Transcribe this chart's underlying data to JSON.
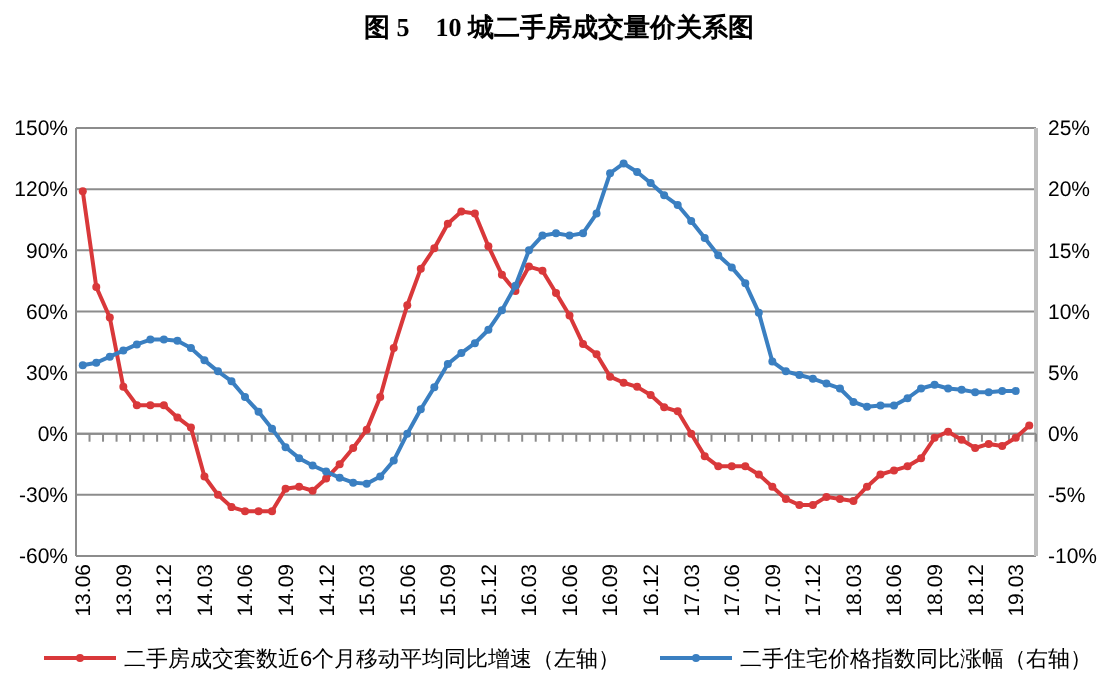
{
  "chart_data": {
    "type": "line",
    "title": "图 5　10 城二手房成交量价关系图",
    "categories": [
      "13.06",
      null,
      null,
      "13.09",
      null,
      null,
      "13.12",
      null,
      null,
      "14.03",
      null,
      null,
      "14.06",
      null,
      null,
      "14.09",
      null,
      null,
      "14.12",
      null,
      null,
      "15.03",
      null,
      null,
      "15.06",
      null,
      null,
      "15.09",
      null,
      null,
      "15.12",
      null,
      null,
      "16.03",
      null,
      null,
      "16.06",
      null,
      null,
      "16.09",
      null,
      null,
      "16.12",
      null,
      null,
      "17.03",
      null,
      null,
      "17.06",
      null,
      null,
      "17.09",
      null,
      null,
      "17.12",
      null,
      null,
      "18.03",
      null,
      null,
      "18.06",
      null,
      null,
      "18.09",
      null,
      null,
      "18.12",
      null,
      null,
      "19.03",
      null
    ],
    "series": [
      {
        "name": "二手房成交套数近6个月移动平均同比增速（左轴）",
        "color": "#d9383a",
        "values": [
          119,
          72,
          57,
          23,
          14,
          14,
          14,
          8,
          3,
          -21,
          -30,
          -36,
          -38,
          -38,
          -38,
          -27,
          -26,
          -28,
          -22,
          -15,
          -7,
          2,
          18,
          42,
          63,
          81,
          91,
          103,
          109,
          108,
          92,
          78,
          70,
          82,
          80,
          69,
          58,
          44,
          39,
          28,
          25,
          23,
          19,
          13,
          11,
          0,
          -11,
          -16,
          -16,
          -16,
          -20,
          -26,
          -32,
          -35,
          -35,
          -31,
          -32,
          -33,
          -26,
          -20,
          -18,
          -16,
          -12,
          -2,
          1,
          -3,
          -7,
          -5,
          -6,
          -2,
          4
        ]
      },
      {
        "name": "二手住宅价格指数同比涨幅（右轴）",
        "color": "#3a7fc1",
        "axis": "y2",
        "values": [
          5.6,
          5.8,
          6.3,
          6.8,
          7.3,
          7.7,
          7.7,
          7.6,
          7.0,
          6.0,
          5.1,
          4.3,
          3.0,
          1.8,
          0.4,
          -1.1,
          -2.0,
          -2.6,
          -3.1,
          -3.6,
          -4.0,
          -4.1,
          -3.5,
          -2.2,
          0.0,
          2.0,
          3.8,
          5.7,
          6.6,
          7.4,
          8.5,
          10.1,
          12.1,
          15.0,
          16.2,
          16.4,
          16.2,
          16.4,
          18.0,
          21.3,
          22.1,
          21.4,
          20.5,
          19.5,
          18.7,
          17.4,
          16.0,
          14.6,
          13.6,
          12.3,
          9.9,
          5.9,
          5.1,
          4.8,
          4.5,
          4.1,
          3.7,
          2.6,
          2.2,
          2.3,
          2.3,
          2.9,
          3.7,
          4.0,
          3.7,
          3.6,
          3.4,
          3.4,
          3.5,
          3.5,
          null
        ]
      }
    ],
    "ylim": [
      -60,
      150
    ],
    "yticks": [
      {
        "value": -60,
        "label": "-60%"
      },
      {
        "value": -30,
        "label": "-30%"
      },
      {
        "value": 0,
        "label": "0%"
      },
      {
        "value": 30,
        "label": "30%"
      },
      {
        "value": 60,
        "label": "60%"
      },
      {
        "value": 90,
        "label": "90%"
      },
      {
        "value": 120,
        "label": "120%"
      },
      {
        "value": 150,
        "label": "150%"
      }
    ],
    "y2lim": [
      -10,
      25
    ],
    "y2ticks": [
      {
        "value": -10,
        "label": "-10%"
      },
      {
        "value": -5,
        "label": "-5%"
      },
      {
        "value": 0,
        "label": "0%"
      },
      {
        "value": 5,
        "label": "5%"
      },
      {
        "value": 10,
        "label": "10%"
      },
      {
        "value": 15,
        "label": "15%"
      },
      {
        "value": 20,
        "label": "20%"
      },
      {
        "value": 25,
        "label": "25%"
      }
    ],
    "grid": "y",
    "legend": "bottom",
    "marker": "circle",
    "line_style": "solid"
  }
}
